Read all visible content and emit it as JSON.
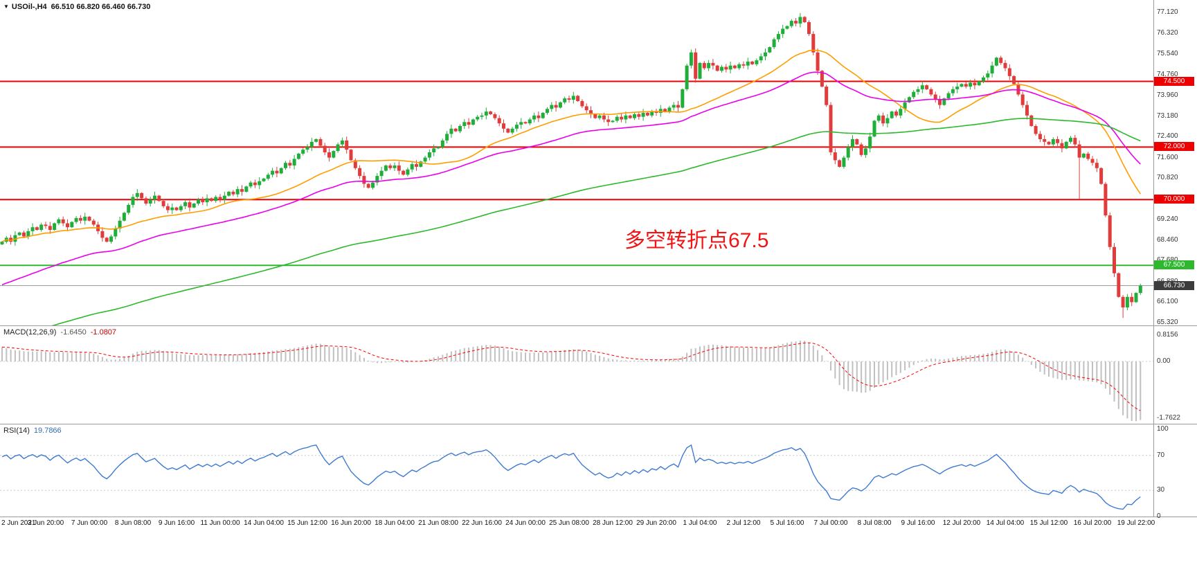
{
  "header": {
    "symbol_with_tf": "USOil-,H4",
    "ohlc_text": "66.510 66.820 66.460 66.730"
  },
  "annotation": {
    "text": "多空转折点67.5",
    "color": "#f21414"
  },
  "chart_data": {
    "type": "candlestick",
    "symbol": "USOil-",
    "timeframe": "H4",
    "title": "USOil- H4 candlestick chart with MACD and RSI",
    "ohlc_display": {
      "open": "66.510",
      "high": "66.820",
      "low": "66.460",
      "close": "66.730"
    },
    "colors": {
      "up": "#1fae3a",
      "down": "#e03c3c",
      "resistance_line": "#ee0000",
      "support_line": "#2db82d",
      "bid_line": "#9a9a9a",
      "bid_box": "#3c3c3c",
      "ma_fast": "#ff9d00",
      "ma_mid": "#ea00ea",
      "ma_slow": "#2db82d",
      "macd_hist": "#c0c0c0",
      "macd_signal": "#ff0000",
      "rsi_line": "#3e7ad1",
      "grid_dotted": "#c8c8c8"
    },
    "x_labels": [
      "2 Jun 2021",
      "3 Jun 20:00",
      "7 Jun 00:00",
      "8 Jun 08:00",
      "9 Jun 16:00",
      "11 Jun 00:00",
      "14 Jun 04:00",
      "15 Jun 12:00",
      "16 Jun 20:00",
      "18 Jun 04:00",
      "21 Jun 08:00",
      "22 Jun 16:00",
      "24 Jun 00:00",
      "25 Jun 08:00",
      "28 Jun 12:00",
      "29 Jun 20:00",
      "1 Jul 04:00",
      "2 Jul 12:00",
      "5 Jul 16:00",
      "7 Jul 00:00",
      "8 Jul 08:00",
      "9 Jul 16:00",
      "12 Jul 20:00",
      "14 Jul 04:00",
      "15 Jul 12:00",
      "16 Jul 20:00",
      "19 Jul 22:00"
    ],
    "candles_per_label": 10,
    "candles": {
      "first_open": 68.3,
      "closes": [
        68.4,
        68.55,
        68.4,
        68.65,
        68.75,
        68.6,
        68.8,
        68.95,
        68.85,
        69.05,
        69.0,
        68.85,
        69.1,
        69.25,
        69.1,
        68.95,
        69.15,
        69.3,
        69.2,
        69.35,
        69.2,
        69.05,
        68.8,
        68.55,
        68.4,
        68.6,
        68.9,
        69.2,
        69.5,
        69.8,
        70.1,
        70.25,
        70.05,
        69.85,
        70.0,
        70.15,
        69.95,
        69.75,
        69.6,
        69.7,
        69.6,
        69.75,
        69.9,
        69.7,
        69.85,
        70.0,
        69.9,
        70.05,
        69.95,
        70.1,
        70.0,
        70.15,
        70.3,
        70.2,
        70.4,
        70.3,
        70.5,
        70.65,
        70.55,
        70.7,
        70.8,
        70.95,
        71.1,
        71.0,
        71.2,
        71.4,
        71.3,
        71.55,
        71.75,
        71.9,
        72.0,
        72.2,
        72.3,
        72.05,
        71.8,
        71.6,
        71.85,
        72.1,
        72.25,
        71.9,
        71.5,
        71.2,
        70.9,
        70.6,
        70.45,
        70.65,
        70.9,
        71.1,
        71.3,
        71.2,
        71.3,
        71.1,
        70.95,
        71.15,
        71.35,
        71.25,
        71.45,
        71.6,
        71.8,
        71.95,
        72.0,
        72.25,
        72.5,
        72.7,
        72.6,
        72.8,
        72.95,
        72.85,
        73.05,
        73.15,
        73.2,
        73.35,
        73.25,
        73.1,
        72.9,
        72.7,
        72.55,
        72.7,
        72.85,
        72.95,
        72.9,
        73.05,
        73.2,
        73.1,
        73.3,
        73.45,
        73.6,
        73.5,
        73.7,
        73.85,
        73.8,
        73.95,
        73.75,
        73.55,
        73.4,
        73.25,
        73.1,
        73.2,
        73.05,
        72.95,
        73.0,
        73.15,
        73.05,
        73.2,
        73.1,
        73.25,
        73.15,
        73.3,
        73.2,
        73.35,
        73.3,
        73.45,
        73.35,
        73.5,
        73.6,
        73.5,
        74.2,
        75.1,
        75.6,
        74.6,
        75.2,
        75.0,
        75.2,
        75.1,
        74.9,
        75.05,
        74.95,
        75.1,
        75.0,
        75.15,
        75.1,
        75.25,
        75.15,
        75.3,
        75.45,
        75.6,
        75.8,
        76.1,
        76.3,
        76.5,
        76.6,
        76.8,
        76.7,
        76.95,
        76.75,
        76.3,
        75.6,
        74.9,
        74.3,
        73.6,
        71.8,
        71.5,
        71.25,
        71.6,
        72.0,
        72.3,
        72.1,
        71.7,
        71.95,
        72.4,
        73.0,
        73.2,
        72.9,
        73.1,
        73.35,
        73.2,
        73.45,
        73.7,
        73.9,
        74.1,
        74.2,
        74.35,
        74.2,
        74.0,
        73.8,
        73.6,
        73.85,
        74.05,
        74.2,
        74.3,
        74.4,
        74.3,
        74.45,
        74.35,
        74.5,
        74.65,
        74.8,
        75.1,
        75.4,
        75.2,
        75.0,
        74.7,
        74.4,
        74.0,
        73.6,
        73.2,
        72.8,
        72.5,
        72.3,
        72.2,
        72.1,
        72.3,
        72.15,
        71.95,
        72.2,
        72.35,
        72.1,
        71.6,
        71.75,
        71.55,
        71.4,
        71.2,
        70.6,
        69.4,
        68.2,
        67.2,
        66.3,
        65.9,
        66.3,
        66.1,
        66.45,
        66.73
      ],
      "long_lower_wicks": {
        "247": 1.6,
        "257": 0.4
      }
    },
    "price_axis": {
      "max": 77.12,
      "min": 65.32,
      "labels": [
        "77.120",
        "76.320",
        "75.540",
        "74.760",
        "73.960",
        "73.180",
        "72.400",
        "71.600",
        "70.820",
        "70.040",
        "69.240",
        "68.460",
        "67.680",
        "66.880",
        "66.100",
        "65.320"
      ]
    },
    "hlines": [
      {
        "price": 74.5,
        "label": "74.500",
        "color": "#ee0000",
        "box_bg": "#ee0000",
        "width": 2
      },
      {
        "price": 72.0,
        "label": "72.000",
        "color": "#ee0000",
        "box_bg": "#ee0000",
        "width": 2
      },
      {
        "price": 70.0,
        "label": "70.000",
        "color": "#ee0000",
        "box_bg": "#ee0000",
        "width": 2
      },
      {
        "price": 67.5,
        "label": "67.500",
        "color": "#2db82d",
        "box_bg": "#2db82d",
        "width": 2
      }
    ],
    "current_price": {
      "value": 66.73,
      "label": "66.730"
    },
    "overlays": [
      {
        "name": "ma-fast",
        "type": "sma",
        "period": 26,
        "color": "#ff9d00"
      },
      {
        "name": "ma-mid",
        "type": "ema",
        "period": 55,
        "seed": 66.7,
        "color": "#ea00ea"
      },
      {
        "name": "ma-slow",
        "type": "ema",
        "period": 160,
        "seed": 64.6,
        "color": "#2db82d"
      }
    ],
    "macd": {
      "label": "MACD(12,26,9)",
      "value_main": "-1.6450",
      "value_signal": "-1.0807",
      "fast": 12,
      "slow": 26,
      "signal": 9,
      "seed_fast_offset": 0.2,
      "seed_slow_offset": -0.3,
      "axis": [
        0.8156,
        0.0,
        -1.7622
      ],
      "axis_labels": [
        "0.8156",
        "0.00",
        "-1.7622"
      ]
    },
    "rsi": {
      "label": "RSI(14)",
      "value_text": "19.7866",
      "period": 14,
      "seed_gain": 0.12,
      "seed_loss": 0.055,
      "levels": [
        70,
        30
      ],
      "axis_values": [
        100,
        70,
        30,
        0
      ],
      "axis_labels": [
        "100",
        "70",
        "30",
        "0"
      ]
    }
  }
}
